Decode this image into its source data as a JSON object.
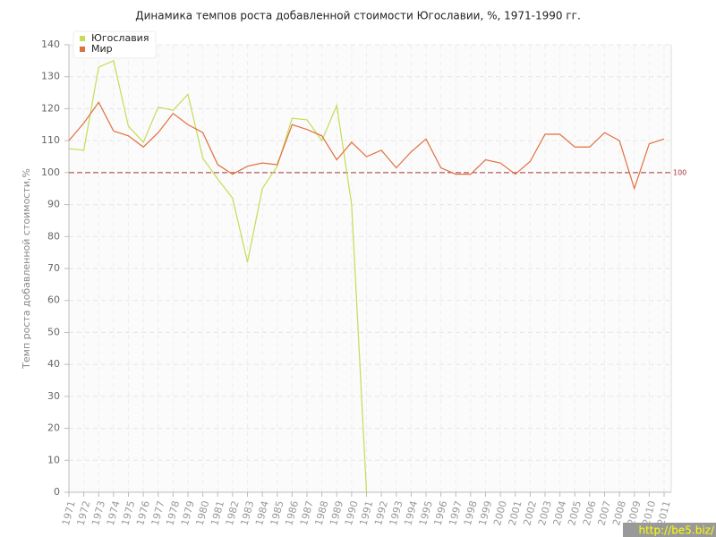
{
  "chart_data": {
    "type": "line",
    "title": "Динамика темпов роста добавленной стоимости Югославии, %, 1971-1990 гг.",
    "y_label": "Темп роста добавленной стоимости,%",
    "categories": [
      "1971",
      "1972",
      "1973",
      "1974",
      "1975",
      "1976",
      "1977",
      "1978",
      "1979",
      "1980",
      "1981",
      "1982",
      "1983",
      "1984",
      "1985",
      "1986",
      "1987",
      "1988",
      "1989",
      "1990",
      "1991",
      "1992",
      "1993",
      "1994",
      "1995",
      "1996",
      "1997",
      "1998",
      "1999",
      "2000",
      "2001",
      "2002",
      "2003",
      "2004",
      "2005",
      "2006",
      "2007",
      "2008",
      "2009",
      "2010",
      "2011"
    ],
    "series": [
      {
        "name": "Югославия",
        "color": "#c5dc55",
        "values": [
          107.5,
          107,
          133,
          135,
          114.5,
          109.5,
          120.5,
          119.5,
          124.5,
          104.5,
          98,
          92,
          72,
          95,
          102,
          117,
          116.5,
          110,
          121,
          90,
          0,
          null,
          null,
          null,
          null,
          null,
          null,
          null,
          null,
          null,
          null,
          null,
          null,
          null,
          null,
          null,
          null,
          null,
          null,
          null,
          null
        ]
      },
      {
        "name": "Мир",
        "color": "#e0703f",
        "values": [
          110,
          115.5,
          122,
          113,
          111.5,
          108,
          112.5,
          118.5,
          115,
          112.5,
          102.5,
          99.5,
          102,
          103,
          102.5,
          115,
          113.5,
          111.5,
          104,
          109.5,
          105,
          107,
          101.5,
          106.5,
          110.5,
          101.5,
          99.5,
          99.5,
          104,
          103,
          99.5,
          103.5,
          112,
          112,
          108,
          108,
          112.5,
          110,
          95,
          109,
          110.5
        ]
      }
    ],
    "ylim": [
      0,
      140
    ],
    "yticks": [
      0,
      10,
      20,
      30,
      40,
      50,
      60,
      70,
      80,
      90,
      100,
      110,
      120,
      130,
      140
    ],
    "grid": true,
    "legend": "top-left",
    "reference_line": {
      "value": 100,
      "label": "100",
      "color": "#a8333a"
    },
    "watermark": "http://be5.biz/"
  }
}
